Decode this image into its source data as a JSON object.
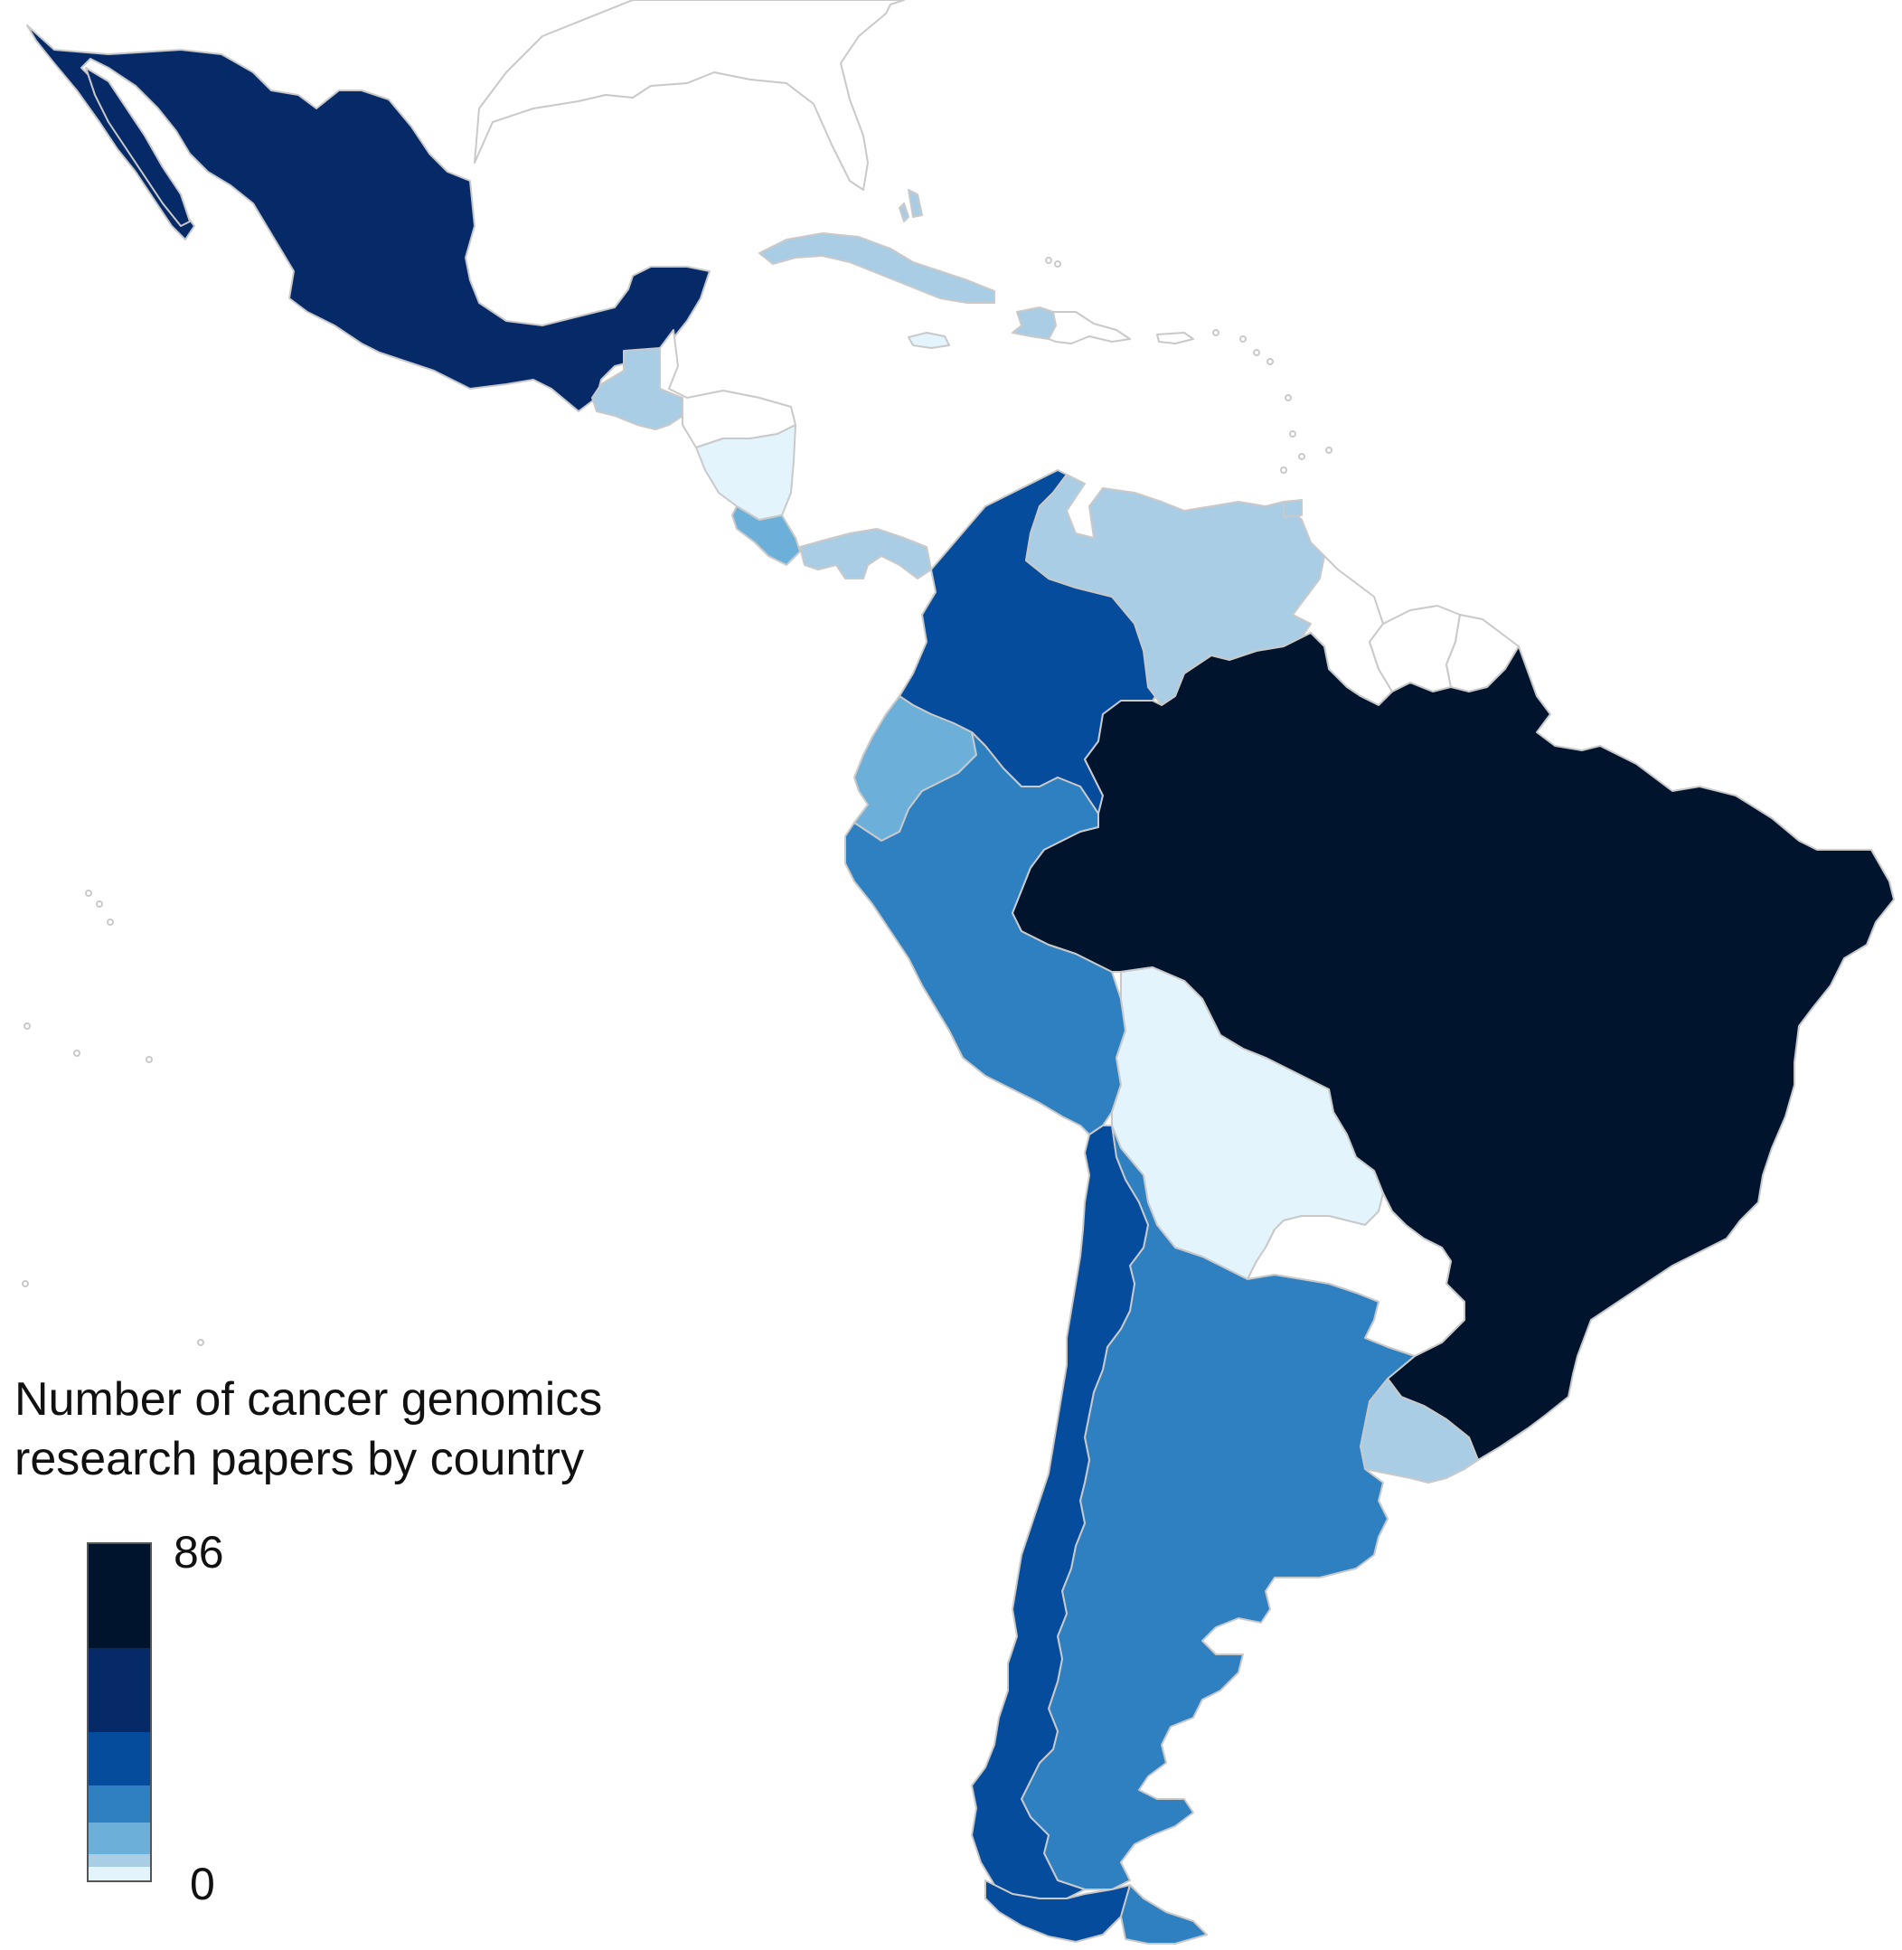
{
  "legend": {
    "title_line1": "Number of cancer genomics",
    "title_line2": "research papers by country",
    "max_label": "86",
    "min_label": "0",
    "scale": [
      {
        "color": "#00142e",
        "share": 0.235
      },
      {
        "color": "#062a68",
        "share": 0.19
      },
      {
        "color": "#064c9c",
        "share": 0.12
      },
      {
        "color": "#2f80c0",
        "share": 0.085
      },
      {
        "color": "#6cb0da",
        "share": 0.07
      },
      {
        "color": "#aacde6",
        "share": 0.03
      },
      {
        "color": "#e3f4fc",
        "share": 0.03
      }
    ]
  },
  "palette": {
    "none": "#ffffff",
    "very_low": "#e3f4fc",
    "low": "#aacde6",
    "low_mid": "#6cb0da",
    "mid": "#2f80c0",
    "mid_high": "#064c9c",
    "high": "#062a68",
    "max": "#00142e",
    "border": "#c9c9c9"
  },
  "countries": [
    {
      "id": "mexico",
      "level": "high"
    },
    {
      "id": "guatemala",
      "level": "low"
    },
    {
      "id": "honduras",
      "level": "none"
    },
    {
      "id": "nicaragua",
      "level": "very_low"
    },
    {
      "id": "costa-rica",
      "level": "low_mid"
    },
    {
      "id": "panama",
      "level": "low"
    },
    {
      "id": "cuba",
      "level": "low"
    },
    {
      "id": "jamaica",
      "level": "very_low"
    },
    {
      "id": "haiti",
      "level": "low"
    },
    {
      "id": "dominican-republic",
      "level": "none"
    },
    {
      "id": "puerto-rico",
      "level": "none"
    },
    {
      "id": "bahamas",
      "level": "low"
    },
    {
      "id": "colombia",
      "level": "mid_high"
    },
    {
      "id": "venezuela",
      "level": "low"
    },
    {
      "id": "guyana",
      "level": "none"
    },
    {
      "id": "suriname",
      "level": "none"
    },
    {
      "id": "french-guiana",
      "level": "none"
    },
    {
      "id": "ecuador",
      "level": "low_mid"
    },
    {
      "id": "peru",
      "level": "mid"
    },
    {
      "id": "brazil",
      "level": "max"
    },
    {
      "id": "bolivia",
      "level": "very_low"
    },
    {
      "id": "paraguay",
      "level": "none"
    },
    {
      "id": "chile",
      "level": "mid_high"
    },
    {
      "id": "argentina",
      "level": "mid"
    },
    {
      "id": "uruguay",
      "level": "low"
    }
  ]
}
